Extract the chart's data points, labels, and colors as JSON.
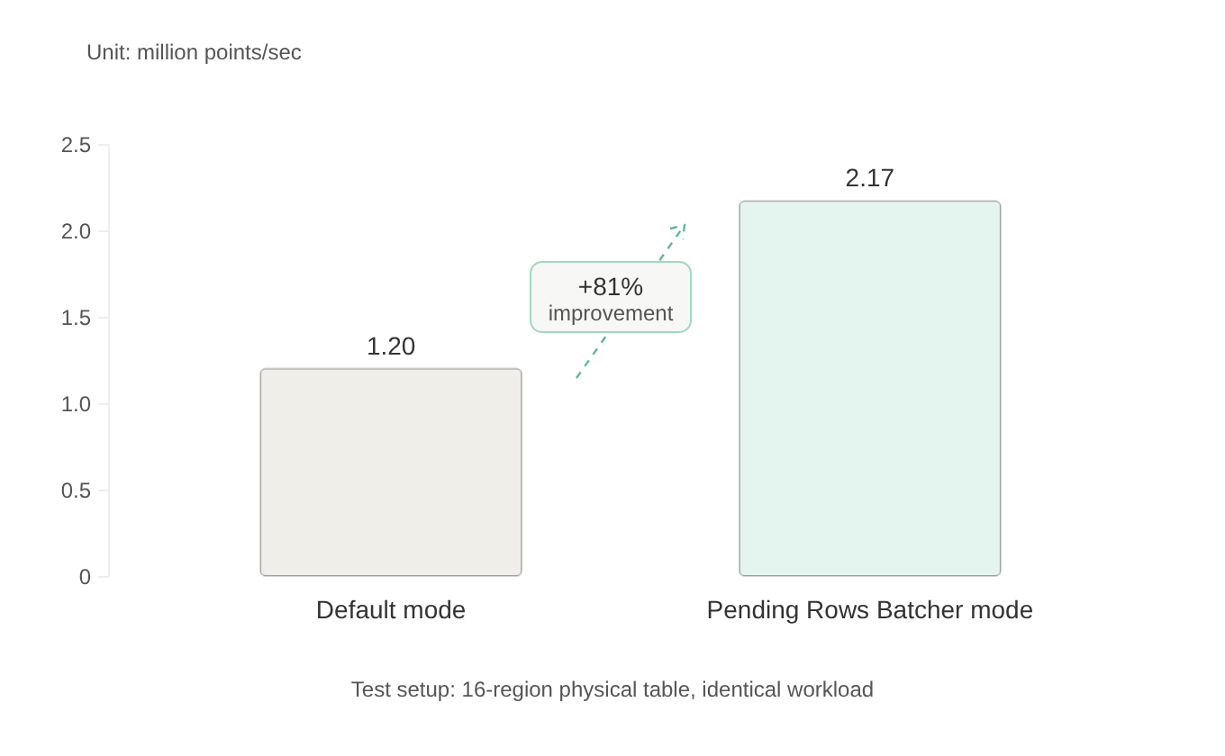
{
  "chart_data": {
    "type": "bar",
    "title": "Unit: million points/sec",
    "categories": [
      "Default mode",
      "Pending Rows Batcher mode"
    ],
    "values": [
      1.2,
      2.17
    ],
    "colors": [
      "#f0eee8",
      "#e3f5ee"
    ],
    "value_labels": [
      "1.20",
      "2.17"
    ],
    "ylim": [
      0,
      2.5
    ],
    "yticks": [
      0,
      0.5,
      {
        "value": 1,
        "label": "1.0"
      },
      1.5,
      {
        "value": 2,
        "label": "2.0"
      },
      2.5
    ],
    "annotations": [
      "+81%",
      "improvement",
      "Test setup: 16-region physical table, identical workload"
    ]
  }
}
